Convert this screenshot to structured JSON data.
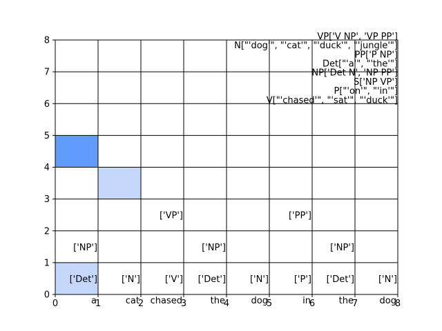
{
  "chart_data": {
    "type": "heatmap",
    "title": "",
    "xlabel": "",
    "ylabel": "",
    "xlim": [
      0,
      8
    ],
    "ylim": [
      0,
      8
    ],
    "xticks": [
      "0",
      "1",
      "2",
      "3",
      "4",
      "5",
      "6",
      "7",
      "8"
    ],
    "yticks": [
      "0",
      "1",
      "2",
      "3",
      "4",
      "5",
      "6",
      "7",
      "8"
    ],
    "grid": true,
    "words": [
      {
        "x": 0.5,
        "text": "a"
      },
      {
        "x": 1.5,
        "text": "cat"
      },
      {
        "x": 2.5,
        "text": "chased"
      },
      {
        "x": 3.5,
        "text": "the"
      },
      {
        "x": 4.5,
        "text": "dog"
      },
      {
        "x": 5.5,
        "text": "in"
      },
      {
        "x": 6.5,
        "text": "the"
      },
      {
        "x": 7.5,
        "text": "dog"
      }
    ],
    "cells": [
      {
        "col": 0,
        "row": 0,
        "text": "['Det']"
      },
      {
        "col": 1,
        "row": 0,
        "text": "['N']"
      },
      {
        "col": 2,
        "row": 0,
        "text": "['V']"
      },
      {
        "col": 3,
        "row": 0,
        "text": "['Det']"
      },
      {
        "col": 4,
        "row": 0,
        "text": "['N']"
      },
      {
        "col": 5,
        "row": 0,
        "text": "['P']"
      },
      {
        "col": 6,
        "row": 0,
        "text": "['Det']"
      },
      {
        "col": 7,
        "row": 0,
        "text": "['N']"
      },
      {
        "col": 0,
        "row": 1,
        "text": "['NP']"
      },
      {
        "col": 3,
        "row": 1,
        "text": "['NP']"
      },
      {
        "col": 6,
        "row": 1,
        "text": "['NP']"
      },
      {
        "col": 2,
        "row": 2,
        "text": "['VP']"
      },
      {
        "col": 5,
        "row": 2,
        "text": "['PP']"
      }
    ],
    "highlights": [
      {
        "col": 0,
        "row": 0,
        "color": "#c5d8fb"
      },
      {
        "col": 1,
        "row": 3,
        "color": "#c5d8fb"
      },
      {
        "col": 0,
        "row": 4,
        "color": "#619cfd"
      }
    ],
    "grammar_rules": [
      "VP['V NP', 'VP PP']",
      "N[\"'dog'\", \"'cat'\", \"'duck'\", \"'jungle'\"]",
      "PP['P NP']",
      "Det[\"'a'\", \"'the'\"]",
      "NP['Det N', 'NP PP']",
      "S['NP VP']",
      "P[\"'on'\", \"'in'\"]",
      "V[\"'chased'\", \"'sat'\", \"'duck'\"]"
    ]
  }
}
